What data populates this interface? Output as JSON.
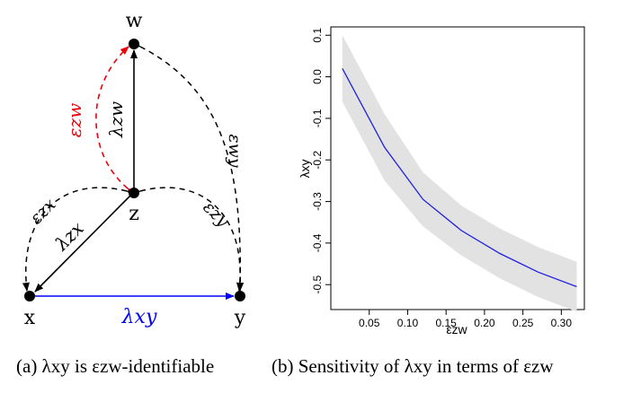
{
  "panel_a": {
    "nodes": {
      "w": "w",
      "z": "z",
      "x": "x",
      "y": "y"
    },
    "edge_labels": {
      "lambda_zw": "λzw",
      "lambda_zx": "λzx",
      "lambda_xy": "λxy",
      "eps_zw": "εzw",
      "eps_zx": "εzx",
      "eps_zy": "εzy",
      "eps_wy": "εwy"
    },
    "colors": {
      "eps_zw": "#e8000b",
      "lambda_xy": "#0000ff",
      "default": "#000000"
    }
  },
  "chart_data": {
    "type": "line",
    "ylabel": "λxy",
    "xlabel": "εzw",
    "xlim": [
      0.0,
      0.33
    ],
    "ylim": [
      -0.56,
      0.12
    ],
    "xticks": [
      "0.05",
      "0.10",
      "0.15",
      "0.20",
      "0.25",
      "0.30"
    ],
    "yticks": [
      "0.1",
      "0.0",
      "-0.1",
      "-0.2",
      "-0.3",
      "-0.4",
      "-0.5"
    ],
    "series": [
      {
        "x": [
          0.015,
          0.07,
          0.12,
          0.17,
          0.22,
          0.27,
          0.32
        ],
        "values": [
          0.02,
          -0.17,
          -0.295,
          -0.37,
          -0.425,
          -0.47,
          -0.505
        ],
        "lower": [
          -0.06,
          -0.25,
          -0.36,
          -0.43,
          -0.485,
          -0.53,
          -0.565
        ],
        "upper": [
          0.1,
          -0.09,
          -0.23,
          -0.31,
          -0.365,
          -0.41,
          -0.445
        ]
      }
    ],
    "colors": {
      "line": "#1f1fe0",
      "band": "#e2e2e2"
    },
    "grid": false
  },
  "captions": {
    "a": "(a) λxy is εzw-identifiable",
    "b": "(b) Sensitivity of λxy in terms of εzw"
  }
}
